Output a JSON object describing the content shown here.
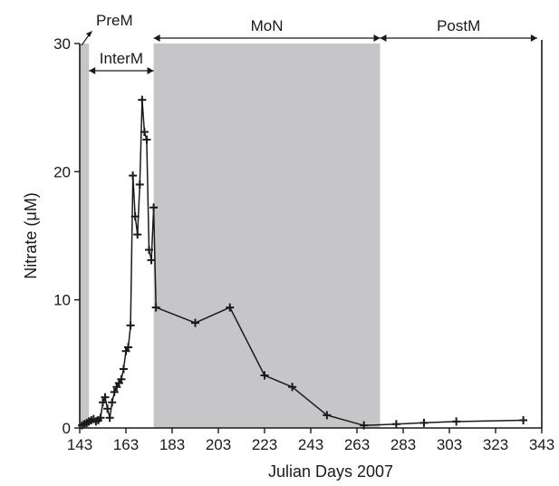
{
  "chart_data": {
    "type": "line",
    "title": "",
    "xlabel": "Julian Days 2007",
    "ylabel": "Nitrate (μM)",
    "xlim": [
      143,
      343
    ],
    "ylim": [
      0,
      30
    ],
    "xticks": [
      143,
      163,
      183,
      203,
      223,
      243,
      263,
      283,
      303,
      323,
      343
    ],
    "yticks": [
      0,
      10,
      20,
      30
    ],
    "grid": false,
    "legend": "none",
    "shaded_regions": [
      {
        "label": "PreM",
        "from": 143,
        "to": 147
      },
      {
        "label": "MoN",
        "from": 175,
        "to": 273
      }
    ],
    "phases": [
      {
        "label": "PreM",
        "from": 143,
        "to": 147
      },
      {
        "label": "InterM",
        "from": 147,
        "to": 175
      },
      {
        "label": "MoN",
        "from": 175,
        "to": 273
      },
      {
        "label": "PostM",
        "from": 273,
        "to": 341
      }
    ],
    "series": [
      {
        "x": [
          144,
          145,
          146,
          147,
          148,
          149,
          150,
          151,
          152,
          153,
          154,
          155,
          156,
          157,
          158,
          159,
          160,
          161,
          162,
          163,
          164,
          165,
          166,
          167,
          168,
          169,
          170,
          171,
          172,
          173,
          174,
          175,
          176,
          193,
          208,
          223,
          235,
          250,
          266,
          280,
          292,
          306,
          335
        ],
        "y": [
          0.2,
          0.3,
          0.4,
          0.5,
          0.6,
          0.7,
          0.5,
          0.6,
          0.8,
          2.0,
          2.4,
          1.5,
          0.8,
          2.0,
          2.8,
          3.2,
          3.5,
          3.8,
          4.6,
          6.0,
          6.3,
          8.0,
          19.7,
          16.5,
          15.1,
          19.0,
          25.6,
          23.1,
          22.5,
          13.9,
          13.1,
          17.2,
          9.4,
          8.2,
          9.4,
          4.1,
          3.2,
          1.0,
          0.2,
          0.3,
          0.4,
          0.5,
          0.6
        ]
      }
    ],
    "colors": {
      "line": "#1a1a1a",
      "shade": "#c6c6c8"
    }
  }
}
